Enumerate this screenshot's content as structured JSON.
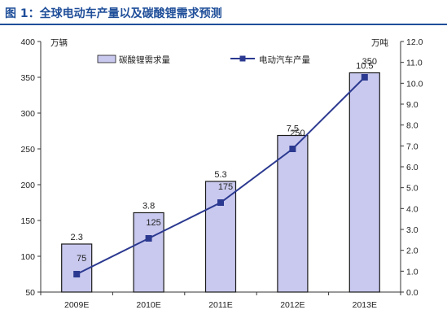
{
  "figure": {
    "title": "图 1：全球电动车产量以及碳酸锂需求预测"
  },
  "colors": {
    "bar_fill": "#c9c9ef",
    "bar_stroke": "#1a1a1a",
    "line": "#2b3990",
    "title": "#1f4e99"
  },
  "chart_data": {
    "type": "bar+line",
    "categories": [
      "2009E",
      "2010E",
      "2011E",
      "2012E",
      "2013E"
    ],
    "series": [
      {
        "name": "碳酸锂需求量",
        "type": "bar",
        "axis": "right",
        "unit": "万吨",
        "values": [
          2.3,
          3.8,
          5.3,
          7.5,
          10.5
        ],
        "labels": [
          "2.3",
          "3.8",
          "5.3",
          "7.5",
          "10.5"
        ]
      },
      {
        "name": "电动汽车产量",
        "type": "line",
        "axis": "left",
        "unit": "万辆",
        "values": [
          75,
          125,
          175,
          250,
          350
        ],
        "labels": [
          "75",
          "125",
          "175",
          "250",
          "350"
        ]
      }
    ],
    "y_left": {
      "unit": "万辆",
      "min": 50,
      "max": 400,
      "ticks": [
        50,
        100,
        150,
        200,
        250,
        300,
        350,
        400
      ]
    },
    "y_right": {
      "unit": "万吨",
      "min": 0,
      "max": 12,
      "ticks": [
        "0.0",
        "1.0",
        "2.0",
        "3.0",
        "4.0",
        "5.0",
        "6.0",
        "7.0",
        "8.0",
        "9.0",
        "10.0",
        "11.0",
        "12.0"
      ]
    },
    "legend_position": "top",
    "grid": false
  }
}
